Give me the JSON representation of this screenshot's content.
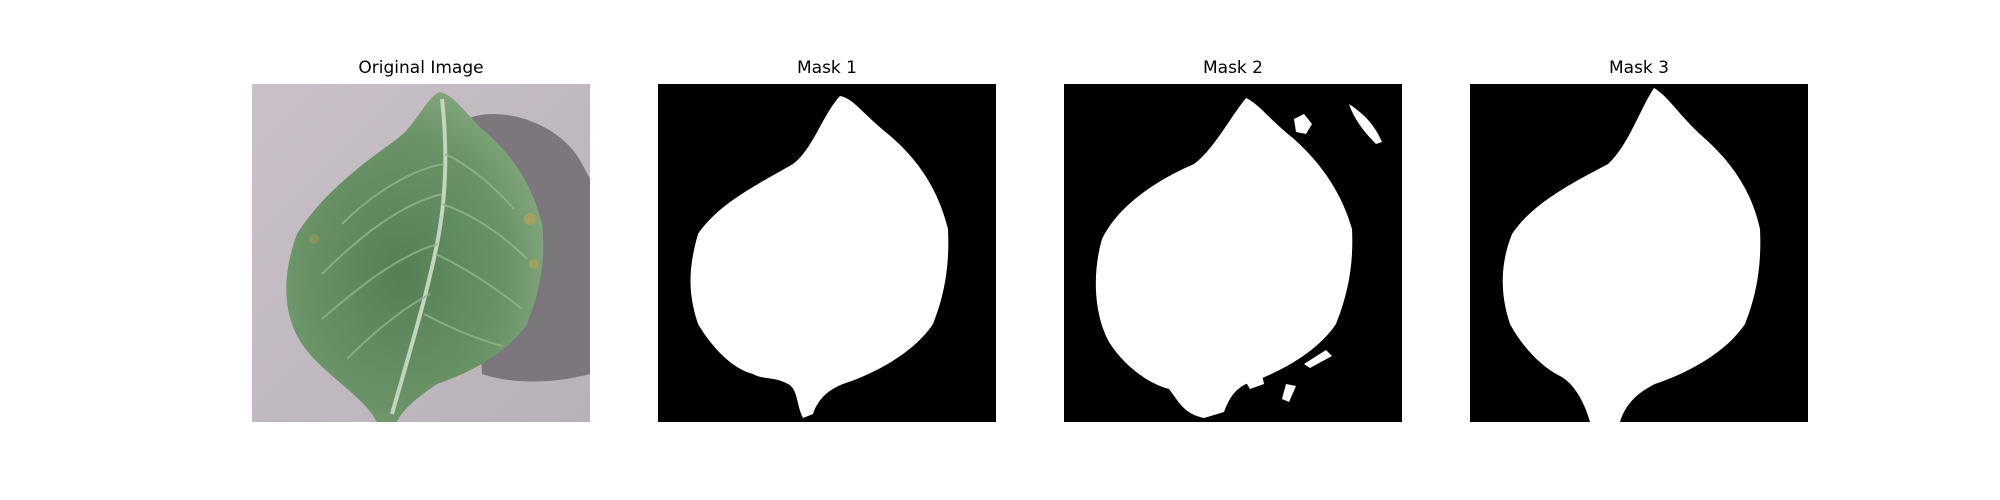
{
  "figure": {
    "panels": [
      {
        "title": "Original Image"
      },
      {
        "title": "Mask 1"
      },
      {
        "title": "Mask 2"
      },
      {
        "title": "Mask 3"
      }
    ]
  },
  "colors": {
    "background_gray": "#c4bcc2",
    "shadow": "#6f6b70",
    "leaf": "#6a9468",
    "leaf_dark": "#4d7a4f",
    "vein": "#b9cdb5",
    "mask_bg": "#000000",
    "mask_fg": "#ffffff"
  },
  "icons": [
    "leaf-photo",
    "binary-mask"
  ]
}
